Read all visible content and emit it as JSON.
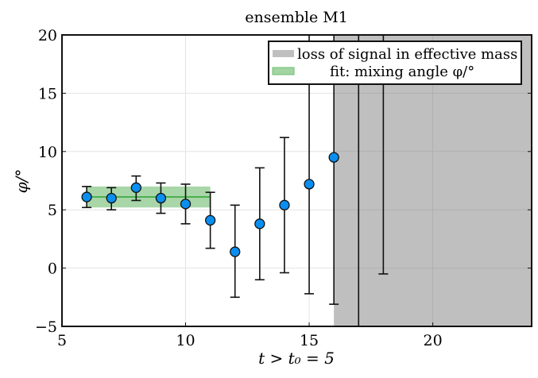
{
  "chart_data": {
    "type": "scatter",
    "title": "ensemble M1",
    "xlabel": "t > t₀ = 5",
    "ylabel": "φ/°",
    "xlim": [
      5,
      24
    ],
    "ylim": [
      -5,
      20
    ],
    "xticks": [
      5,
      10,
      15,
      20
    ],
    "yticks": [
      -5,
      0,
      5,
      10,
      15,
      20
    ],
    "xtick_labels": [
      "5",
      "10",
      "15",
      "20"
    ],
    "ytick_labels": [
      "−5",
      "0",
      "5",
      "10",
      "15",
      "20"
    ],
    "grid": true,
    "legend_position": "top-right",
    "legend": [
      {
        "label": "loss of signal in effective mass",
        "color": "#bfbfbf"
      },
      {
        "label": "fit: mixing angle φ/°",
        "color": "#a3d4a3"
      }
    ],
    "shaded_region": {
      "x_from": 16,
      "x_to": 24,
      "color": "#bfbfbf",
      "label": "loss of signal in effective mass"
    },
    "fit": {
      "x_from": 6,
      "x_to": 11,
      "value": 6.1,
      "lower": 5.2,
      "upper": 7.0,
      "band_color": "#a3d4a3",
      "line_color": "#4caf50"
    },
    "series": [
      {
        "name": "mixing angle",
        "marker_color": "#0a8ef0",
        "points": [
          {
            "x": 6,
            "y": 6.1,
            "ylo": 5.2,
            "yhi": 7.0
          },
          {
            "x": 7,
            "y": 6.0,
            "ylo": 5.0,
            "yhi": 6.9
          },
          {
            "x": 8,
            "y": 6.9,
            "ylo": 5.8,
            "yhi": 7.9
          },
          {
            "x": 9,
            "y": 6.0,
            "ylo": 4.7,
            "yhi": 7.3
          },
          {
            "x": 10,
            "y": 5.5,
            "ylo": 3.8,
            "yhi": 7.2
          },
          {
            "x": 11,
            "y": 4.1,
            "ylo": 1.7,
            "yhi": 6.5
          },
          {
            "x": 12,
            "y": 1.4,
            "ylo": -2.5,
            "yhi": 5.4
          },
          {
            "x": 13,
            "y": 3.8,
            "ylo": -1.0,
            "yhi": 8.6
          },
          {
            "x": 14,
            "y": 5.4,
            "ylo": -0.4,
            "yhi": 11.2
          },
          {
            "x": 15,
            "y": 7.2,
            "ylo": -2.2,
            "yhi": 25
          },
          {
            "x": 16,
            "y": 9.5,
            "ylo": -3.1,
            "yhi": 25
          },
          {
            "x": 17,
            "y": null,
            "ylo": -10,
            "yhi": 25
          },
          {
            "x": 18,
            "y": null,
            "ylo": -0.5,
            "yhi": 25
          }
        ]
      }
    ]
  }
}
